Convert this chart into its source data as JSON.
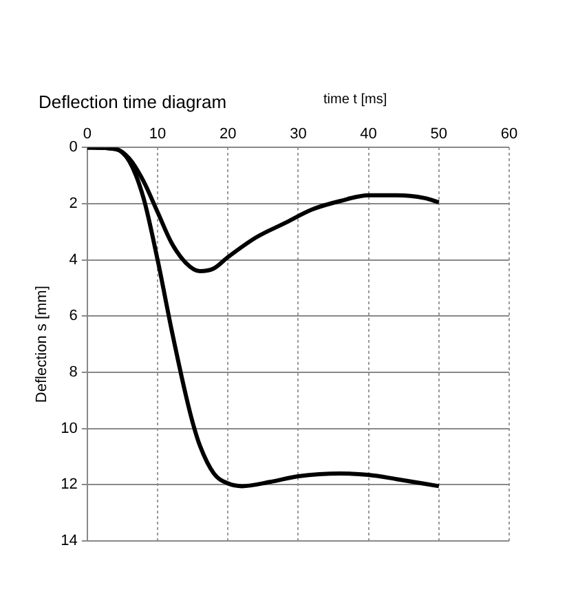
{
  "chart_data": {
    "type": "line",
    "title": "Deflection time diagram",
    "xlabel": "time t [ms]",
    "ylabel": "Deflection s [mm]",
    "xlim": [
      0,
      60
    ],
    "xticks": [
      0,
      10,
      20,
      30,
      40,
      50,
      60
    ],
    "ylim": [
      14,
      0
    ],
    "yticks": [
      0,
      2,
      4,
      6,
      8,
      10,
      12,
      14
    ],
    "grid": true,
    "legend": false,
    "marker": "none",
    "line_style": "solid",
    "series": [
      {
        "color": "#000000",
        "x": [
          0,
          4,
          6,
          8,
          10,
          12,
          14,
          16,
          18,
          20,
          24,
          28,
          32,
          36,
          40,
          44,
          48,
          50
        ],
        "values": [
          0,
          0.05,
          0.4,
          1.2,
          2.3,
          3.4,
          4.1,
          4.4,
          4.3,
          3.9,
          3.2,
          2.7,
          2.2,
          1.9,
          1.7,
          1.7,
          1.8,
          1.95
        ]
      },
      {
        "color": "#000000",
        "x": [
          0,
          4,
          6,
          8,
          10,
          12,
          14,
          15,
          16,
          18,
          20,
          22,
          26,
          30,
          36,
          40,
          44,
          50
        ],
        "values": [
          0,
          0.05,
          0.5,
          1.8,
          4,
          6.5,
          8.8,
          9.8,
          10.6,
          11.6,
          11.95,
          12.05,
          11.9,
          11.7,
          11.6,
          11.65,
          11.8,
          12.05
        ]
      }
    ]
  }
}
